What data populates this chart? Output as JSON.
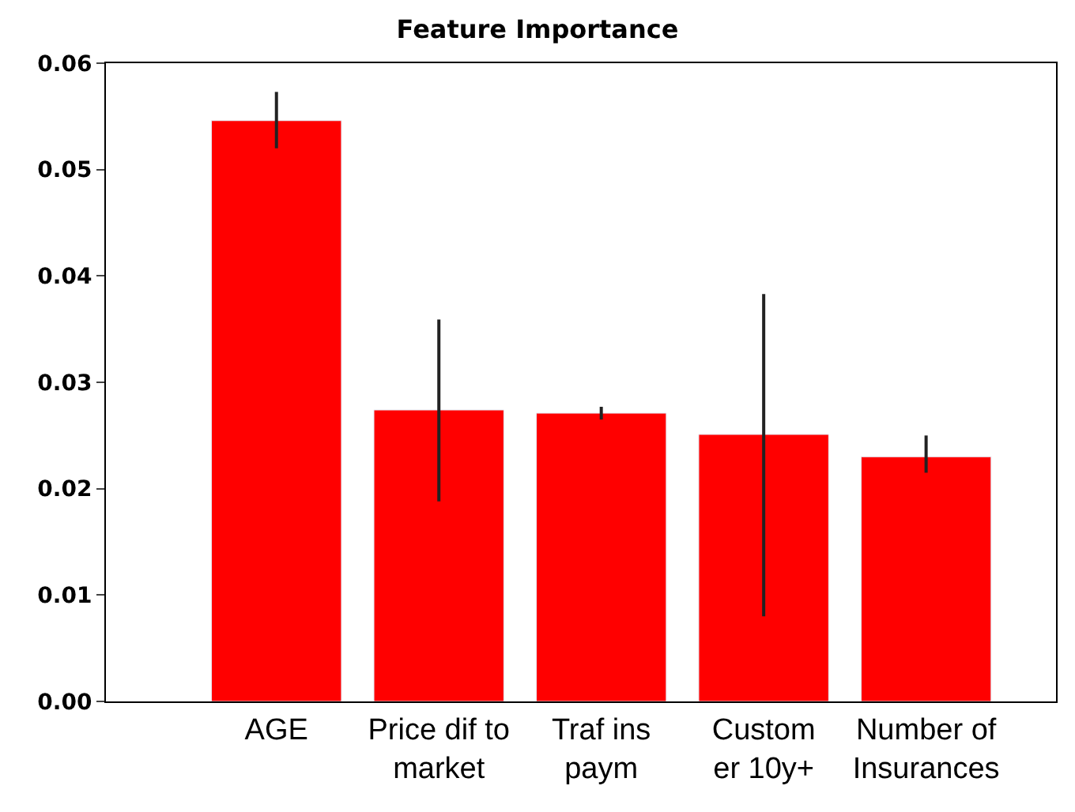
{
  "chart_data": {
    "type": "bar",
    "title": "Feature Importance",
    "categories": [
      "AGE",
      "Price dif to\nmarket",
      "Traf ins\npaym",
      "Custom\ner 10y+",
      "Number of\nInsurances"
    ],
    "values": [
      0.0546,
      0.0274,
      0.0271,
      0.0251,
      0.023
    ],
    "errors": [
      [
        0.052,
        0.0573
      ],
      [
        0.0188,
        0.0359
      ],
      [
        0.0265,
        0.0277
      ],
      [
        0.008,
        0.0383
      ],
      [
        0.0215,
        0.025
      ]
    ],
    "ylim": [
      0,
      0.06
    ],
    "yticks": [
      {
        "value": 0,
        "label": "0.00"
      },
      {
        "value": 0.01,
        "label": "0.01"
      },
      {
        "value": 0.02,
        "label": "0.02"
      },
      {
        "value": 0.03,
        "label": "0.03"
      },
      {
        "value": 0.04,
        "label": "0.04"
      },
      {
        "value": 0.05,
        "label": "0.05"
      },
      {
        "value": 0.06,
        "label": "0.06"
      }
    ],
    "color": "#ff0000"
  }
}
